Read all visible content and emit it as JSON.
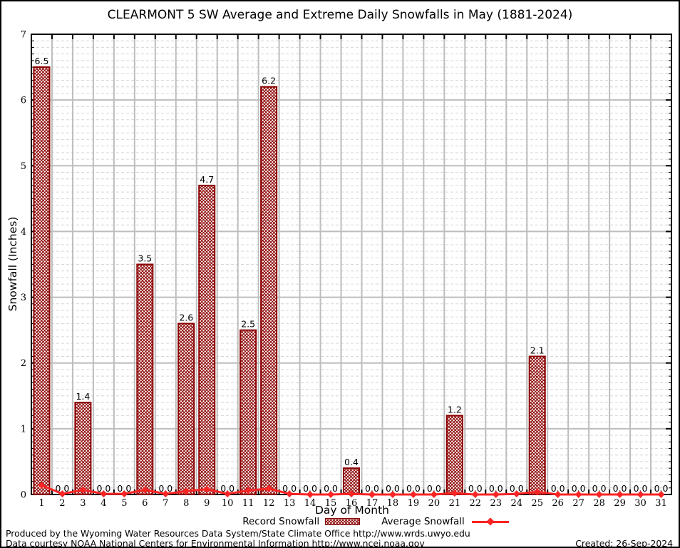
{
  "chart_data": {
    "type": "bar",
    "title": "CLEARMONT 5 SW Average and Extreme Daily Snowfalls in May (1881-2024)",
    "xlabel": "Day of Month",
    "ylabel": "Snowfall (Inches)",
    "xlim": [
      0.5,
      31.5
    ],
    "ylim": [
      0,
      7
    ],
    "y_ticks": [
      0,
      1,
      2,
      3,
      4,
      5,
      6,
      7
    ],
    "y_minor_step": 0.1,
    "grid": true,
    "legend_position": "bottom",
    "categories": [
      1,
      2,
      3,
      4,
      5,
      6,
      7,
      8,
      9,
      10,
      11,
      12,
      13,
      14,
      15,
      16,
      17,
      18,
      19,
      20,
      21,
      22,
      23,
      24,
      25,
      26,
      27,
      28,
      29,
      30,
      31
    ],
    "series": [
      {
        "name": "Record Snowfall",
        "type": "bar",
        "fill_pattern": "crosshatch",
        "values": [
          6.5,
          0.0,
          1.4,
          0.0,
          0.0,
          3.5,
          0.0,
          2.6,
          4.7,
          0.0,
          2.5,
          6.2,
          0.0,
          0.0,
          0.0,
          0.4,
          0.0,
          0.0,
          0.0,
          0.0,
          1.2,
          0.0,
          0.0,
          0.0,
          2.1,
          0.0,
          0.0,
          0.0,
          0.0,
          0.0,
          0.0
        ],
        "value_labels": [
          "6.5",
          "0.0",
          "1.4",
          "0.0",
          "0.0",
          "3.5",
          "0.0",
          "2.6",
          "4.7",
          "0.0",
          "2.5",
          "6.2",
          "0.0",
          "0.0",
          "0.0",
          "0.4",
          "0.0",
          "0.0",
          "0.0",
          "0.0",
          "1.2",
          "0.0",
          "0.0",
          "0.0",
          "2.1",
          "0.0",
          "0.0",
          "0.0",
          "0.0",
          "0.0",
          "0.0"
        ]
      },
      {
        "name": "Average Snowfall",
        "type": "line",
        "marker": "diamond",
        "values": [
          0.14,
          0.01,
          0.07,
          0.01,
          0.01,
          0.07,
          0.01,
          0.05,
          0.08,
          0.01,
          0.06,
          0.09,
          0.01,
          0.0,
          0.0,
          0.01,
          0.0,
          0.0,
          0.0,
          0.0,
          0.02,
          0.0,
          0.0,
          0.01,
          0.04,
          0.0,
          0.0,
          0.0,
          0.0,
          0.0,
          0.0
        ]
      }
    ]
  },
  "colors": {
    "bar_border": "#8b0000",
    "line": "#fa2525",
    "grid_major": "#bdbdbd",
    "grid_minor": "#d6d6d6",
    "axis": "#000000",
    "background": "#ffffff",
    "text": "#000000"
  },
  "footer": {
    "line1": "Produced by the Wyoming Water Resources Data System/State Climate Office http://www.wrds.uwyo.edu",
    "line2": "Data courtesy NOAA National Centers for Environmental Information http://www.ncei.noaa.gov",
    "created": "Created: 26-Sep-2024"
  }
}
